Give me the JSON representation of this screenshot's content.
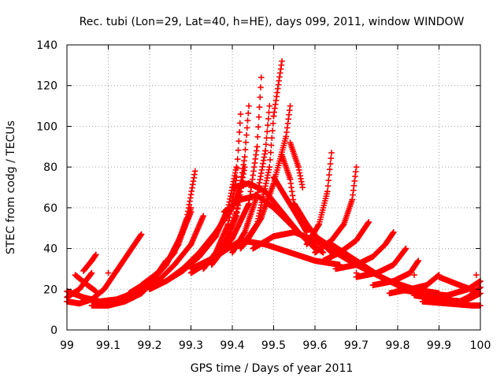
{
  "chart_data": {
    "type": "scatter",
    "title": "Rec. tubi (Lon=29, Lat=40, h=HE), days 099, 2011, window WINDOW",
    "xlabel": "GPS time / Days of year 2011",
    "ylabel": "STEC from codg / TECUs",
    "xlim": [
      99,
      100
    ],
    "ylim": [
      0,
      140
    ],
    "x_ticks": [
      "99",
      "99.1",
      "99.2",
      "99.3",
      "99.4",
      "99.5",
      "99.6",
      "99.7",
      "99.8",
      "99.9",
      "100"
    ],
    "y_ticks": [
      "0",
      "20",
      "40",
      "60",
      "80",
      "100",
      "120",
      "140"
    ],
    "grid": true,
    "marker": "+",
    "color": "#ff0000",
    "x_step": 0.0014,
    "tracks": [
      {
        "x": [
          99.0,
          99.04,
          99.08,
          99.12,
          99.16,
          99.2
        ],
        "y": [
          19,
          16,
          14,
          15,
          18,
          24
        ]
      },
      {
        "x": [
          99.0,
          99.03,
          99.06,
          99.09,
          99.12,
          99.15,
          99.18
        ],
        "y": [
          14,
          13,
          15,
          20,
          29,
          38,
          47
        ]
      },
      {
        "x": [
          99.0,
          99.03,
          99.06
        ],
        "y": [
          16,
          20,
          28
        ]
      },
      {
        "x": [
          99.02,
          99.05,
          99.07
        ],
        "y": [
          27,
          22,
          19
        ]
      },
      {
        "x": [
          99.04,
          99.06,
          99.07
        ],
        "y": [
          29,
          34,
          37
        ]
      },
      {
        "x": [
          99.06,
          99.1,
          99.14,
          99.18,
          99.22
        ],
        "y": [
          12,
          12,
          14,
          18,
          26
        ]
      },
      {
        "x": [
          99.08,
          99.12,
          99.16,
          99.2,
          99.24
        ],
        "y": [
          14,
          13,
          16,
          22,
          34
        ]
      },
      {
        "x": [
          99.1,
          99.14,
          99.18,
          99.22,
          99.26,
          99.3,
          99.33
        ],
        "y": [
          13,
          15,
          19,
          24,
          32,
          42,
          56
        ]
      },
      {
        "x": [
          99.12,
          99.16,
          99.2,
          99.24,
          99.28,
          99.3
        ],
        "y": [
          14,
          17,
          23,
          32,
          48,
          58
        ]
      },
      {
        "x": [
          99.15,
          99.19,
          99.23,
          99.27,
          99.3
        ],
        "y": [
          18,
          23,
          30,
          42,
          60
        ]
      },
      {
        "x": [
          99.18,
          99.22,
          99.26,
          99.29,
          99.31
        ],
        "y": [
          22,
          28,
          38,
          55,
          78
        ]
      },
      {
        "x": [
          99.2,
          99.24,
          99.28,
          99.32,
          99.36,
          99.4,
          99.42
        ],
        "y": [
          20,
          24,
          30,
          38,
          48,
          60,
          72
        ]
      },
      {
        "x": [
          99.24,
          99.28,
          99.32,
          99.36,
          99.39,
          99.41
        ],
        "y": [
          24,
          29,
          36,
          46,
          60,
          80
        ]
      },
      {
        "x": [
          99.3,
          99.34,
          99.38,
          99.41,
          99.43
        ],
        "y": [
          28,
          33,
          42,
          56,
          80
        ]
      },
      {
        "x": [
          99.33,
          99.36,
          99.39,
          99.41,
          99.42
        ],
        "y": [
          30,
          38,
          52,
          75,
          106
        ]
      },
      {
        "x": [
          99.35,
          99.38,
          99.41,
          99.43,
          99.44
        ],
        "y": [
          32,
          40,
          58,
          85,
          110
        ]
      },
      {
        "x": [
          99.36,
          99.4,
          99.44,
          99.46,
          99.47
        ],
        "y": [
          35,
          45,
          62,
          90,
          124
        ]
      },
      {
        "x": [
          99.4,
          99.43,
          99.46,
          99.48,
          99.49
        ],
        "y": [
          38,
          48,
          66,
          88,
          110
        ]
      },
      {
        "x": [
          99.42,
          99.46,
          99.49,
          99.5,
          99.52
        ],
        "y": [
          40,
          52,
          80,
          105,
          132
        ]
      },
      {
        "x": [
          99.43,
          99.47,
          99.5,
          99.53,
          99.54
        ],
        "y": [
          42,
          55,
          72,
          95,
          110
        ]
      },
      {
        "x": [
          99.4,
          99.44,
          99.48,
          99.52,
          99.56,
          99.6
        ],
        "y": [
          70,
          72,
          68,
          58,
          48,
          40
        ]
      },
      {
        "x": [
          99.38,
          99.42,
          99.46,
          99.5,
          99.54,
          99.58,
          99.62
        ],
        "y": [
          58,
          64,
          66,
          60,
          52,
          44,
          38
        ]
      },
      {
        "x": [
          99.3,
          99.36,
          99.42,
          99.48,
          99.54,
          99.6,
          99.66
        ],
        "y": [
          30,
          36,
          44,
          42,
          38,
          34,
          32
        ]
      },
      {
        "x": [
          99.45,
          99.5,
          99.55,
          99.6,
          99.65,
          99.7,
          99.74
        ],
        "y": [
          40,
          46,
          48,
          44,
          38,
          32,
          28
        ]
      },
      {
        "x": [
          99.5,
          99.53,
          99.56,
          99.58
        ],
        "y": [
          75,
          65,
          55,
          48
        ]
      },
      {
        "x": [
          99.52,
          99.54,
          99.55
        ],
        "y": [
          86,
          74,
          60
        ]
      },
      {
        "x": [
          99.54,
          99.56,
          99.57
        ],
        "y": [
          92,
          80,
          70
        ]
      },
      {
        "x": [
          99.55,
          99.58,
          99.61,
          99.64
        ],
        "y": [
          62,
          52,
          44,
          38
        ]
      },
      {
        "x": [
          99.58,
          99.61,
          99.63,
          99.64
        ],
        "y": [
          42,
          52,
          68,
          87
        ]
      },
      {
        "x": [
          99.6,
          99.64,
          99.67,
          99.69,
          99.7
        ],
        "y": [
          38,
          44,
          52,
          64,
          80
        ]
      },
      {
        "x": [
          99.62,
          99.66,
          99.7,
          99.73
        ],
        "y": [
          34,
          38,
          44,
          53
        ]
      },
      {
        "x": [
          99.65,
          99.7,
          99.74,
          99.77,
          99.79
        ],
        "y": [
          30,
          32,
          36,
          42,
          48
        ]
      },
      {
        "x": [
          99.6,
          99.66,
          99.72,
          99.78,
          99.84,
          99.9
        ],
        "y": [
          46,
          38,
          30,
          24,
          20,
          18
        ]
      },
      {
        "x": [
          99.64,
          99.7,
          99.76,
          99.82,
          99.88,
          99.94
        ],
        "y": [
          42,
          34,
          26,
          20,
          16,
          14
        ]
      },
      {
        "x": [
          99.7,
          99.75,
          99.79,
          99.82
        ],
        "y": [
          26,
          28,
          32,
          40
        ]
      },
      {
        "x": [
          99.74,
          99.79,
          99.83,
          99.85
        ],
        "y": [
          22,
          24,
          28,
          34
        ]
      },
      {
        "x": [
          99.78,
          99.83,
          99.87,
          99.9
        ],
        "y": [
          18,
          20,
          22,
          27
        ]
      },
      {
        "x": [
          99.8,
          99.86,
          99.92,
          99.97,
          100.0
        ],
        "y": [
          20,
          18,
          17,
          20,
          24
        ]
      },
      {
        "x": [
          99.84,
          99.9,
          99.96,
          100.0
        ],
        "y": [
          17,
          15,
          14,
          18
        ]
      },
      {
        "x": [
          99.86,
          99.92,
          99.98,
          100.0
        ],
        "y": [
          14,
          13,
          12,
          12
        ]
      },
      {
        "x": [
          99.9,
          99.95,
          99.99
        ],
        "y": [
          26,
          22,
          19
        ]
      },
      {
        "x": [
          99.94,
          99.97,
          100.0
        ],
        "y": [
          13,
          16,
          21
        ]
      }
    ],
    "isolated_points": [
      {
        "x": 99.1,
        "y": 28
      },
      {
        "x": 99.84,
        "y": 27
      },
      {
        "x": 99.7,
        "y": 28
      },
      {
        "x": 99.99,
        "y": 27
      }
    ]
  }
}
